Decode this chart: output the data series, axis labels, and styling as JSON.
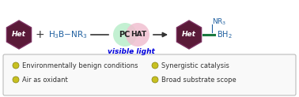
{
  "bg_color": "#ffffff",
  "box_edge_color": "#bbbbbb",
  "box_face_color": "#f9f9f9",
  "hex_fill": "#5a1a38",
  "hex_edge_color": "#7a3060",
  "het_text_color": "#ffffff",
  "reagent_color": "#2060a0",
  "plus_color": "#333333",
  "pc_circle_color": "#c0f0d0",
  "hat_circle_color": "#f0c0d0",
  "pc_text_color": "#222222",
  "hat_text_color": "#222222",
  "visible_light_color": "#0000dd",
  "arrow_color": "#333333",
  "bond_color": "#1a7a40",
  "nr3_bh2_color": "#2060a0",
  "bullet_face_color": "#c8c020",
  "bullet_edge_color": "#808010",
  "bullet_text_color": "#333333",
  "items_left": [
    "Environmentally benign conditions",
    "Air as oxidant"
  ],
  "items_right": [
    "Synergistic catalysis",
    "Broad substrate scope"
  ]
}
